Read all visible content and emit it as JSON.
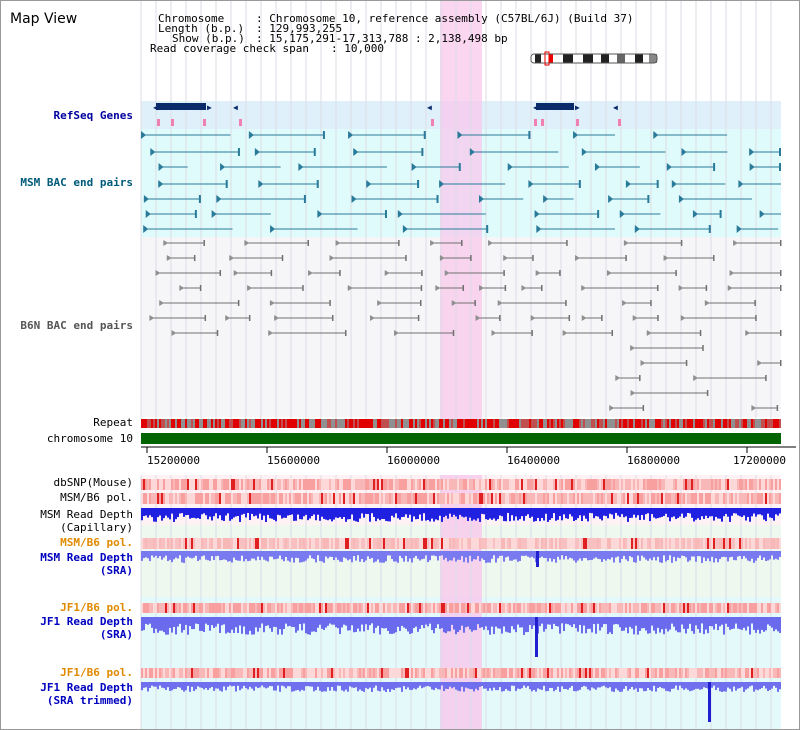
{
  "window": {
    "title": "Map View"
  },
  "info": {
    "chromosome_label": "Chromosome",
    "chromosome_value": ": Chromosome 10, reference assembly (C57BL/6J) (Build 37)",
    "length_label": "Length (b.p.)",
    "length_value": ": 129,993,255",
    "show_label": "Show (b.p.)",
    "show_value": ": 15,175,291-17,313,788 : 2,138,498 bp",
    "coverage_label": "Read coverage check span",
    "coverage_value": ": 10,000"
  },
  "tracks": {
    "refseq": "RefSeq Genes",
    "msm_bac": "MSM BAC end pairs",
    "b6n_bac": "B6N BAC end pairs",
    "repeat": "Repeat",
    "chromosome": "chromosome 10",
    "dbsnp": "dbSNP(Mouse)",
    "msm_pol": "MSM/B6 pol.",
    "msm_depth_cap_1": "MSM Read Depth",
    "msm_depth_cap_2": "(Capillary)",
    "msm_pol_2": "MSM/B6 pol.",
    "msm_depth_sra_1": "MSM Read Depth",
    "msm_depth_sra_2": "(SRA)",
    "jf1_pol_1": "JF1/B6 pol.",
    "jf1_depth_1": "JF1 Read Depth",
    "jf1_depth_1b": "(SRA)",
    "jf1_pol_2": "JF1/B6 pol.",
    "jf1_depth_2": "JF1 Read Depth",
    "jf1_depth_2b": "(SRA trimmed)"
  },
  "axis": {
    "ticks": [
      "15200000",
      "15600000",
      "16000000",
      "16400000",
      "16800000",
      "17200000"
    ]
  },
  "colors": {
    "refseq_label": "#0000a0",
    "msm_bac_label": "#005a7a",
    "b6n_label": "#555555",
    "pol_orange": "#e08a00",
    "depth_blue": "#0000c0",
    "highlight_pink": "#f8c8ec",
    "chromosome_green": "#006400",
    "repeat_red": "#e00000",
    "refseq_bg": "#dff0fb",
    "msm_bg": "#e0fbfb",
    "gene_dark": "#0a2a6a",
    "pol_pink": "#f8a0a0"
  }
}
